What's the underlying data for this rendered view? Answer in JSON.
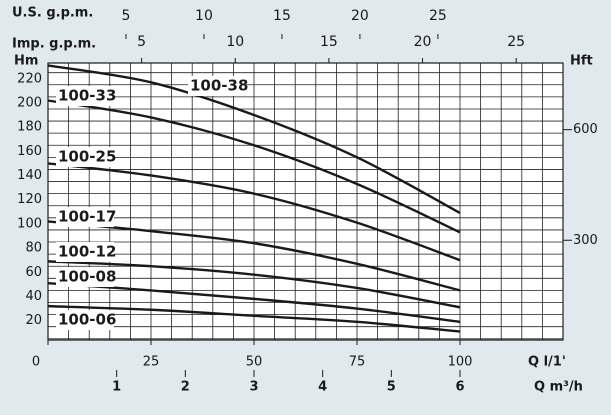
{
  "chart_data": {
    "type": "line",
    "y_label": "Hm",
    "y2_label": "Hft",
    "x_label": "Q l/1'",
    "x2_label": "Q m³/h",
    "x3_label": "U.S. g.p.m.",
    "x4_label": "Imp. g.p.m.",
    "xlim": [
      0,
      125
    ],
    "xticks": [
      0,
      25,
      50,
      75,
      100
    ],
    "x2lim": [
      0,
      7.5
    ],
    "x2ticks": [
      1,
      2,
      3,
      4,
      5,
      6
    ],
    "x3lim": [
      0,
      33.02
    ],
    "x3ticks": [
      5,
      10,
      15,
      20,
      25
    ],
    "x4lim": [
      0,
      27.5
    ],
    "x4ticks": [
      5,
      10,
      15,
      20,
      25
    ],
    "ylim": [
      9,
      238
    ],
    "yticks": [
      20,
      40,
      60,
      80,
      100,
      120,
      140,
      160,
      180,
      200,
      220
    ],
    "y2lim": [
      29.5,
      780.8
    ],
    "y2ticks": [
      300,
      600
    ],
    "grid": true,
    "xgrid": [
      0,
      5,
      10,
      15,
      20,
      25,
      30,
      35,
      40,
      45,
      50,
      55,
      60,
      65,
      70,
      75,
      80,
      85,
      90,
      95,
      100,
      105,
      110,
      115,
      120,
      125
    ],
    "ygrid": [
      10,
      20,
      30,
      40,
      50,
      60,
      70,
      80,
      90,
      100,
      110,
      120,
      130,
      140,
      150,
      160,
      170,
      180,
      190,
      200,
      210,
      220,
      230
    ],
    "x": [
      0,
      25,
      50,
      75,
      100
    ],
    "series": [
      {
        "name": "100-38",
        "color": "#1a1a1a",
        "values": [
          236,
          222,
          195,
          160,
          114
        ]
      },
      {
        "name": "100-33",
        "color": "#1a1a1a",
        "values": [
          207,
          193,
          170,
          138,
          98
        ]
      },
      {
        "name": "100-25",
        "color": "#1a1a1a",
        "values": [
          155,
          145,
          130,
          106,
          75
        ]
      },
      {
        "name": "100-17",
        "color": "#1a1a1a",
        "values": [
          107,
          99,
          89,
          72,
          50
        ]
      },
      {
        "name": "100-12",
        "color": "#1a1a1a",
        "values": [
          74,
          70,
          63,
          52,
          36
        ]
      },
      {
        "name": "100-08",
        "color": "#1a1a1a",
        "values": [
          56,
          50,
          43,
          35,
          24
        ]
      },
      {
        "name": "100-06",
        "color": "#1a1a1a",
        "values": [
          37,
          34,
          29,
          24,
          16
        ]
      }
    ]
  }
}
